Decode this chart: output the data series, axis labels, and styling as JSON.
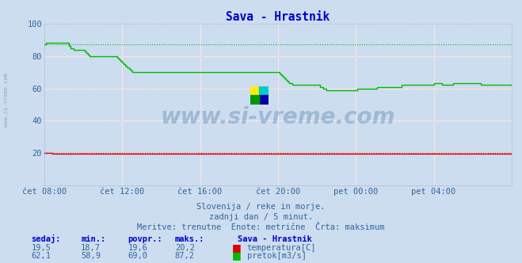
{
  "title": "Sava - Hrastnik",
  "bg_color": "#ccddf0",
  "plot_bg_color": "#ccddf0",
  "temp_color": "#dd0000",
  "flow_color": "#00bb00",
  "grid_white_color": "#ffffff",
  "grid_red_color": "#ffb0b0",
  "ylabel_color": "#336699",
  "xlabel_color": "#336699",
  "title_color": "#0000cc",
  "watermark_text": "www.si-vreme.com",
  "watermark_color": "#336699",
  "subtitle1": "Slovenija / reke in morje.",
  "subtitle2": "zadnji dan / 5 minut.",
  "subtitle3": "Meritve: trenutne  Enote: metrične  Črta: maksimum",
  "table_headers": [
    "sedaj:",
    "min.:",
    "povpr.:",
    "maks.:"
  ],
  "table_label": "Sava - Hrastnik",
  "temp_row": [
    "19,5",
    "18,7",
    "19,6",
    "20,2"
  ],
  "flow_row": [
    "62,1",
    "58,9",
    "69,0",
    "87,2"
  ],
  "temp_label": "temperatura[C]",
  "flow_label": "pretok[m3/s]",
  "xmin": 0,
  "xmax": 288,
  "ymin": 0,
  "ymax": 100,
  "temp_max": 20.2,
  "flow_max": 87.2,
  "xtick_positions": [
    0,
    48,
    96,
    144,
    192,
    240,
    288
  ],
  "xtick_labels": [
    "čet 08:00",
    "čet 12:00",
    "čet 16:00",
    "čet 20:00",
    "pet 00:00",
    "pet 04:00",
    ""
  ],
  "ytick_positions": [
    20,
    40,
    60,
    80,
    100
  ],
  "ytick_labels": [
    "20",
    "40",
    "60",
    "80",
    "100"
  ]
}
